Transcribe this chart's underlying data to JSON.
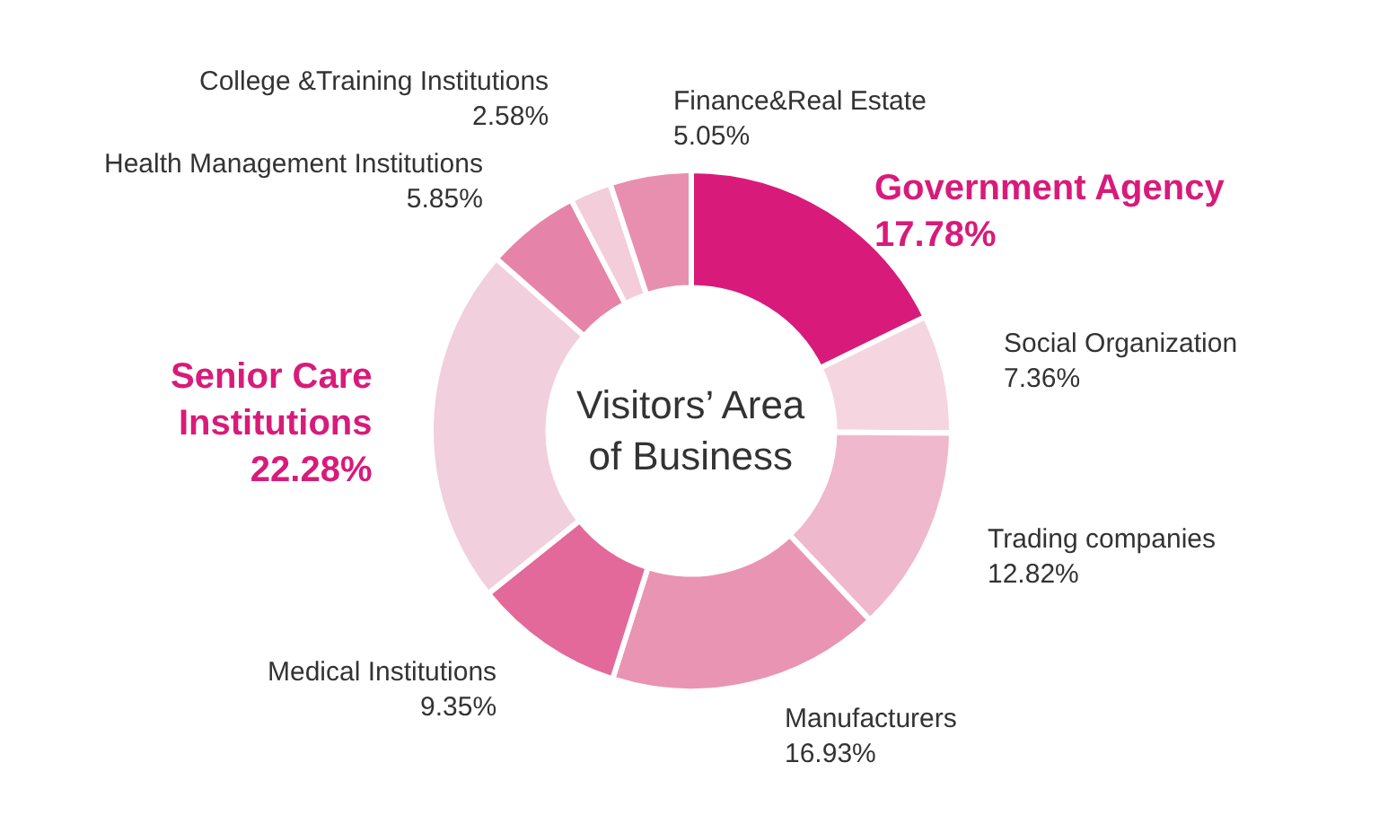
{
  "chart_data": {
    "type": "donut",
    "title": "Visitors’ Area of Business",
    "categories": [
      "Government Agency",
      "Social Organization",
      "Trading companies",
      "Manufacturers",
      "Medical Institutions",
      "Senior Care Institutions",
      "Health Management Institutions",
      "College &Training Institutions",
      "Finance&Real Estate"
    ],
    "values": [
      17.78,
      7.36,
      12.82,
      16.93,
      9.35,
      22.28,
      5.85,
      2.58,
      5.05
    ],
    "value_labels": [
      "17.78%",
      "7.36%",
      "12.82%",
      "16.93%",
      "9.35%",
      "22.28%",
      "5.85%",
      "2.58%",
      "5.05%"
    ],
    "colors": [
      "#d81b7a",
      "#f5d5e0",
      "#efb8cc",
      "#e994b3",
      "#e2699a",
      "#f2cfdc",
      "#e683a8",
      "#f3cdd9",
      "#e88fb0"
    ],
    "legend": false
  }
}
